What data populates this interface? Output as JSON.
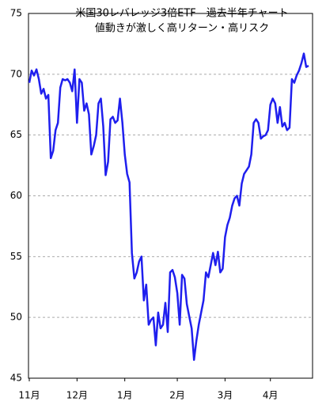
{
  "chart_data": {
    "type": "line",
    "title": "米国30レバレッジ3倍ETF　過去半年チャート",
    "subtitle": "値動きが激しく高リターン・高リスク",
    "categories": [
      "11月",
      null,
      null,
      null,
      null,
      null,
      null,
      null,
      null,
      null,
      null,
      null,
      null,
      null,
      null,
      null,
      null,
      null,
      null,
      null,
      "12月",
      null,
      null,
      null,
      null,
      null,
      null,
      null,
      null,
      null,
      null,
      null,
      null,
      null,
      null,
      null,
      null,
      null,
      null,
      null,
      "1月",
      null,
      null,
      null,
      null,
      null,
      null,
      null,
      null,
      null,
      null,
      null,
      null,
      null,
      null,
      null,
      null,
      null,
      null,
      null,
      null,
      null,
      "2月",
      null,
      null,
      null,
      null,
      null,
      null,
      null,
      null,
      null,
      null,
      null,
      null,
      null,
      null,
      null,
      null,
      null,
      null,
      null,
      "3月",
      null,
      null,
      null,
      null,
      null,
      null,
      null,
      null,
      null,
      null,
      null,
      null,
      null,
      null,
      null,
      null,
      null,
      null,
      "4月",
      null,
      null,
      null,
      null,
      null,
      null,
      null,
      null,
      null,
      null,
      null,
      null,
      null,
      null,
      null,
      null
    ],
    "series": [
      {
        "name": null,
        "color": "#1f1fee",
        "values": [
          69.3,
          70.3,
          69.9,
          70.4,
          69.6,
          68.4,
          68.8,
          68.0,
          68.3,
          63.1,
          63.7,
          65.4,
          66.0,
          68.9,
          69.6,
          69.5,
          69.6,
          69.3,
          68.6,
          70.4,
          66.0,
          69.6,
          69.3,
          67.0,
          67.6,
          66.7,
          63.4,
          64.1,
          65.0,
          67.6,
          68.0,
          65.7,
          61.7,
          62.8,
          66.3,
          66.5,
          66.0,
          66.2,
          68.0,
          66.0,
          63.4,
          61.8,
          61.1,
          55.3,
          53.2,
          53.7,
          54.6,
          55.0,
          51.4,
          52.7,
          49.4,
          49.8,
          50.0,
          47.7,
          50.4,
          49.1,
          49.4,
          51.2,
          48.8,
          53.7,
          53.9,
          53.3,
          52.0,
          49.4,
          53.5,
          53.2,
          51.1,
          50.1,
          49.1,
          46.5,
          48.1,
          49.4,
          50.4,
          51.4,
          53.7,
          53.3,
          54.3,
          55.3,
          54.3,
          55.4,
          53.7,
          54.0,
          56.6,
          57.6,
          58.2,
          59.2,
          59.8,
          60.0,
          59.2,
          61.0,
          61.8,
          62.1,
          62.4,
          63.4,
          66.0,
          66.3,
          66.0,
          64.7,
          64.9,
          65.0,
          65.4,
          67.5,
          68.0,
          67.6,
          66.0,
          67.3,
          65.7,
          66.0,
          65.4,
          65.6,
          69.6,
          69.3,
          69.9,
          70.3,
          70.9,
          71.7,
          70.6,
          70.7
        ]
      }
    ],
    "ylim": [
      45,
      75
    ],
    "yticks": [
      45,
      50,
      55,
      60,
      65,
      70,
      75
    ],
    "grid": true
  }
}
